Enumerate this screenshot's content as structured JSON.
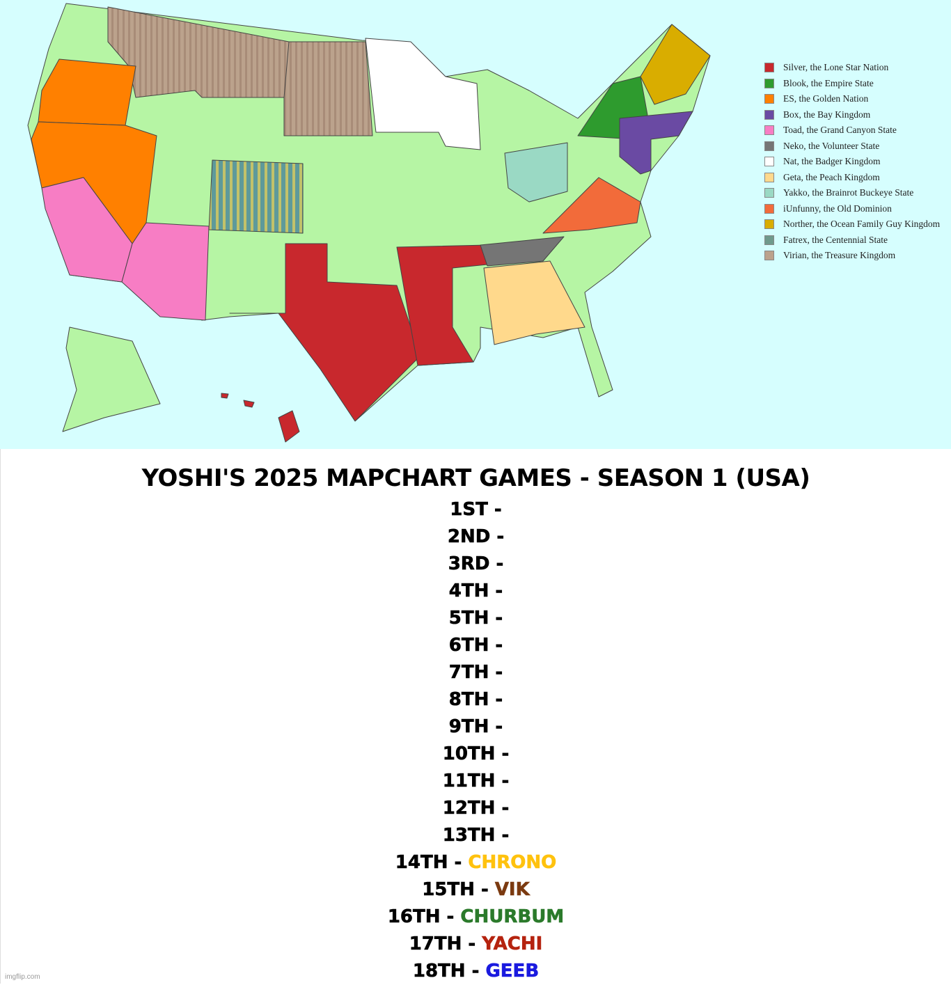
{
  "legend": [
    {
      "label": "Silver, the Lone Star Nation",
      "color": "#c8282d"
    },
    {
      "label": "Blook, the Empire State",
      "color": "#2e9b2e"
    },
    {
      "label": "ES, the Golden Nation",
      "color": "#ff8000"
    },
    {
      "label": "Box, the Bay Kingdom",
      "color": "#6a4aa3"
    },
    {
      "label": "Toad, the Grand Canyon State",
      "color": "#f77dc4"
    },
    {
      "label": "Neko, the Volunteer State",
      "color": "#757575"
    },
    {
      "label": "Nat, the Badger Kingdom",
      "color": "#ffffff"
    },
    {
      "label": "Geta, the Peach Kingdom",
      "color": "#ffd98c"
    },
    {
      "label": "Yakko, the Brainrot Buckeye State",
      "color": "#9ad9c4"
    },
    {
      "label": "iUnfunny, the Old Dominion",
      "color": "#f26b3a"
    },
    {
      "label": "Norther, the Ocean Family Guy Kingdom",
      "color": "#d9ad00"
    },
    {
      "label": "Fatrex, the Centennial State",
      "color": "#6f9a8c"
    },
    {
      "label": "Virian, the Treasure Kingdom",
      "color": "#bba28c"
    }
  ],
  "title": "YOSHI'S 2025 MAPCHART GAMES - SEASON 1 (USA)",
  "rankings": [
    {
      "place": "1ST -"
    },
    {
      "place": "2ND -"
    },
    {
      "place": "3RD -"
    },
    {
      "place": "4TH -"
    },
    {
      "place": "5TH -"
    },
    {
      "place": "6TH -"
    },
    {
      "place": "7TH -"
    },
    {
      "place": "8TH -"
    },
    {
      "place": "9TH -"
    },
    {
      "place": "10TH -"
    },
    {
      "place": "11TH -"
    },
    {
      "place": "12TH -"
    },
    {
      "place": "13TH -"
    },
    {
      "place": "14TH -",
      "name": "CHRONO",
      "color": "#ffc20e"
    },
    {
      "place": "15TH -",
      "name": "VIK",
      "color": "#7b3a10"
    },
    {
      "place": "16TH -",
      "name": "CHURBUM",
      "color": "#2b7a2b"
    },
    {
      "place": "17TH -",
      "name": "YACHI",
      "color": "#b5230f"
    },
    {
      "place": "18TH -",
      "name": "GEEB",
      "color": "#1a1adf"
    }
  ],
  "watermark": "imgflip.com"
}
